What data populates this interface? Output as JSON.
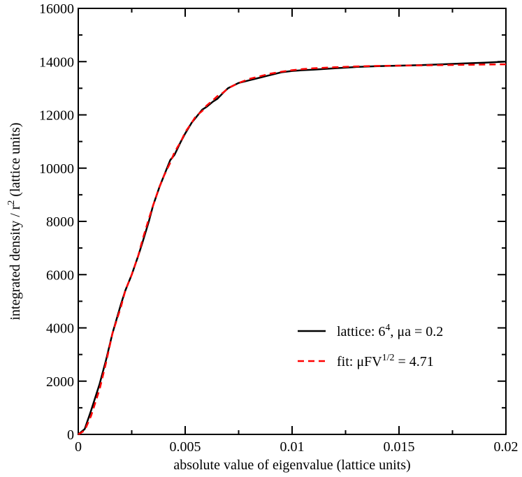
{
  "chart_data": {
    "type": "line",
    "xlabel": "absolute value of eigenvalue (lattice units)",
    "ylabel": {
      "prefix": "integrated density / r",
      "sup": "2",
      "suffix": " (lattice units)"
    },
    "xlim": [
      0,
      0.02
    ],
    "ylim": [
      0,
      16000
    ],
    "x_ticks": [
      0,
      0.005,
      0.01,
      0.015,
      0.02
    ],
    "x_tick_labels": [
      "0",
      "0.005",
      "0.01",
      "0.015",
      "0.02"
    ],
    "y_ticks": [
      0,
      2000,
      4000,
      6000,
      8000,
      10000,
      12000,
      14000,
      16000
    ],
    "y_tick_labels": [
      "0",
      "2000",
      "4000",
      "6000",
      "8000",
      "10000",
      "12000",
      "14000",
      "16000"
    ],
    "grid": false,
    "legend_position": "lower-right",
    "series": [
      {
        "legend": {
          "base": "lattice: 6",
          "sup": "4",
          "rest": ", μa = 0.2"
        },
        "color": "#000000",
        "style": "solid",
        "x": [
          0,
          0.0003,
          0.0006,
          0.001,
          0.0013,
          0.0016,
          0.002,
          0.0022,
          0.0025,
          0.0028,
          0.003,
          0.0033,
          0.0035,
          0.0038,
          0.004,
          0.0043,
          0.0045,
          0.0048,
          0.005,
          0.0053,
          0.0055,
          0.0058,
          0.006,
          0.0063,
          0.0065,
          0.0068,
          0.007,
          0.0075,
          0.008,
          0.0085,
          0.009,
          0.0095,
          0.01,
          0.0105,
          0.011,
          0.012,
          0.013,
          0.014,
          0.015,
          0.016,
          0.017,
          0.018,
          0.019,
          0.02
        ],
        "y": [
          0,
          200,
          900,
          1900,
          2800,
          3800,
          4900,
          5400,
          6000,
          6700,
          7200,
          8000,
          8600,
          9300,
          9700,
          10300,
          10500,
          11000,
          11300,
          11700,
          11900,
          12200,
          12300,
          12500,
          12600,
          12850,
          13000,
          13200,
          13300,
          13400,
          13500,
          13600,
          13650,
          13680,
          13700,
          13750,
          13800,
          13830,
          13850,
          13870,
          13900,
          13930,
          13960,
          14000
        ]
      },
      {
        "legend": {
          "base": "fit: μFV",
          "sup": "1/2",
          "rest": " = 4.71"
        },
        "color": "#ff0000",
        "style": "dashed",
        "x": [
          0,
          0.0003,
          0.0006,
          0.001,
          0.0013,
          0.0016,
          0.002,
          0.0022,
          0.0025,
          0.0028,
          0.003,
          0.0033,
          0.0035,
          0.0038,
          0.004,
          0.0043,
          0.0045,
          0.0048,
          0.005,
          0.0053,
          0.0055,
          0.0058,
          0.006,
          0.0063,
          0.0065,
          0.0068,
          0.007,
          0.0075,
          0.008,
          0.0085,
          0.009,
          0.0095,
          0.01,
          0.0105,
          0.011,
          0.012,
          0.013,
          0.014,
          0.015,
          0.016,
          0.017,
          0.018,
          0.019,
          0.02
        ],
        "y": [
          0,
          150,
          700,
          1700,
          2700,
          3800,
          4800,
          5400,
          6000,
          6700,
          7300,
          8100,
          8600,
          9300,
          9700,
          10200,
          10600,
          11000,
          11350,
          11700,
          11950,
          12150,
          12350,
          12550,
          12700,
          12850,
          13000,
          13200,
          13350,
          13450,
          13550,
          13620,
          13680,
          13720,
          13750,
          13790,
          13820,
          13840,
          13850,
          13860,
          13870,
          13880,
          13890,
          13900
        ]
      }
    ]
  }
}
